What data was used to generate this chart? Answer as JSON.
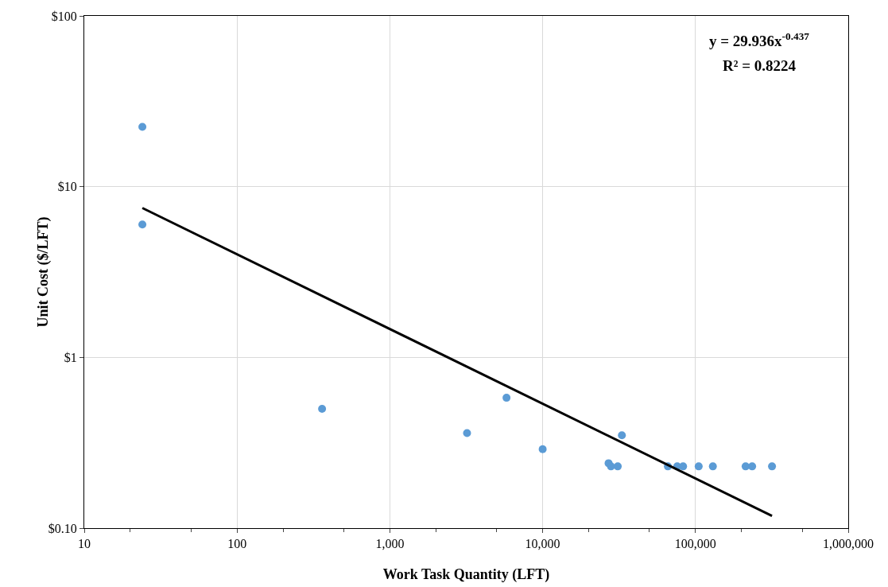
{
  "chart_data": {
    "type": "scatter",
    "xlabel": "Work Task Quantity (LFT)",
    "ylabel": "Unit Cost ($/LFT)",
    "log": "xy",
    "grid": true,
    "xlim": [
      10,
      1000000
    ],
    "xticks": [
      10,
      100,
      {
        "value": 1000,
        "label": "1,000"
      },
      {
        "value": 10000,
        "label": "10,000"
      },
      {
        "value": 100000,
        "label": "100,000"
      },
      {
        "value": 1000000,
        "label": "1,000,000"
      }
    ],
    "ylim": [
      0.1,
      100
    ],
    "yticks": [
      {
        "value": 0.1,
        "label": "$0.10"
      },
      {
        "value": 1,
        "label": "$1"
      },
      {
        "value": 10,
        "label": "$10"
      },
      {
        "value": 100,
        "label": "$100"
      }
    ],
    "annotations": [
      "y = 29.936x$^{-0.437}$",
      "R² = 0.8224"
    ],
    "series": [
      {
        "marker": "circle",
        "color": "#5b9bd5",
        "x": [
          24,
          24,
          360,
          3200,
          5800,
          10000,
          27000,
          28000,
          31000,
          33000,
          66000,
          76000,
          83000,
          105000,
          130000,
          213000,
          235000,
          317000
        ],
        "values": [
          22.4,
          6.0,
          0.5,
          0.36,
          0.58,
          0.29,
          0.24,
          0.23,
          0.23,
          0.35,
          0.23,
          0.23,
          0.23,
          0.23,
          0.23,
          0.23,
          0.23,
          0.23
        ]
      },
      {
        "type": "line",
        "marker": "none",
        "color": "#000000",
        "line_style": "solid",
        "x": [
          24,
          317000
        ],
        "values": [
          7.5,
          0.118
        ]
      }
    ]
  }
}
